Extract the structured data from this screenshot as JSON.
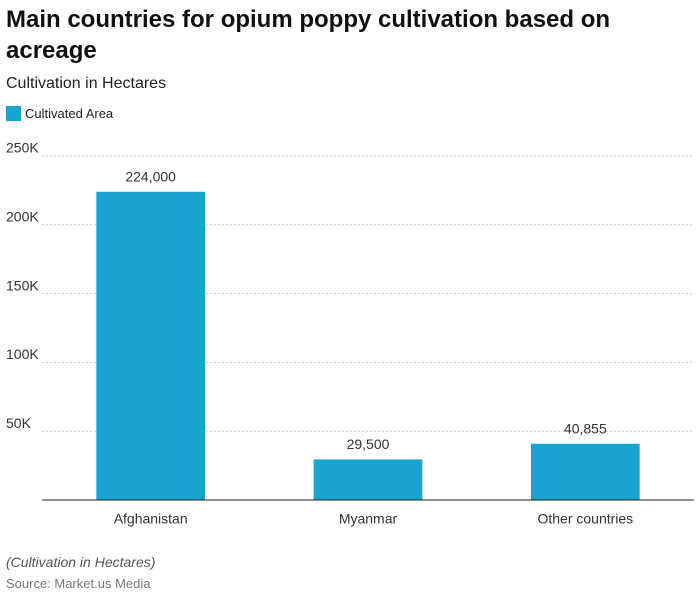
{
  "chart_data": {
    "type": "bar",
    "title": "Main countries for opium poppy cultivation based on acreage",
    "subtitle": "Cultivation in Hectares",
    "categories": [
      "Afghanistan",
      "Myanmar",
      "Other countries"
    ],
    "series": [
      {
        "name": "Cultivated Area",
        "color": "#1ba3d0",
        "values": [
          224000,
          29500,
          40855
        ],
        "value_labels": [
          "224,000",
          "29,500",
          "40,855"
        ]
      }
    ],
    "ylim": [
      0,
      250000
    ],
    "yticks": [
      {
        "value": 50000,
        "label": "50K"
      },
      {
        "value": 100000,
        "label": "100K"
      },
      {
        "value": 150000,
        "label": "150K"
      },
      {
        "value": 200000,
        "label": "200K"
      },
      {
        "value": 250000,
        "label": "250K"
      }
    ],
    "grid": true,
    "note": "(Cultivation in Hectares)",
    "source": "Source: Market.us Media"
  }
}
